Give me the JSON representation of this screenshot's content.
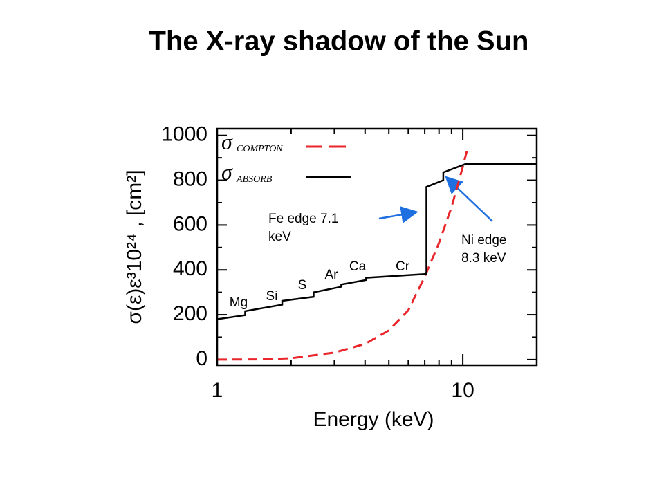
{
  "chart_data": {
    "type": "line",
    "title": "The X-ray shadow of the Sun",
    "xlabel": "Energy (keV)",
    "ylabel": "σ(ε)ε³10²⁴ , [cm²]",
    "xscale": "log",
    "xlim": [
      1,
      20
    ],
    "ylim": [
      -25,
      1030
    ],
    "xticks": [
      1,
      10
    ],
    "xminorticks": [
      2,
      3,
      4,
      5,
      6,
      7,
      8,
      9,
      20
    ],
    "yticks": [
      0,
      200,
      400,
      600,
      800,
      1000
    ],
    "yminorticks": [
      100,
      300,
      500,
      700,
      900
    ],
    "series": [
      {
        "symbol": "σ",
        "name": "COMPTON",
        "color": "#e8262b",
        "dash": true,
        "x": [
          1,
          1.5,
          2,
          3,
          4,
          5,
          6,
          7,
          8,
          9,
          10,
          10.5
        ],
        "values": [
          0,
          1,
          6,
          31,
          70,
          130,
          220,
          370,
          520,
          680,
          860,
          950
        ]
      },
      {
        "symbol": "σ",
        "name": "ABSORB",
        "color": "#000000",
        "dash": false,
        "x": [
          1,
          1.3,
          1.3,
          1.84,
          1.84,
          2.47,
          2.47,
          3.2,
          3.2,
          4.04,
          4.04,
          7.11,
          7.11,
          8.33,
          8.33,
          10.3,
          20
        ],
        "values": [
          180,
          198,
          216,
          245,
          262,
          280,
          300,
          325,
          335,
          355,
          365,
          382,
          770,
          800,
          835,
          873,
          873
        ]
      }
    ],
    "element_labels": [
      "Mg",
      "Si",
      "S",
      "Ar",
      "Ca",
      "Cr"
    ],
    "annotations": [
      {
        "text": [
          "Fe edge 7.1",
          "keV"
        ]
      },
      {
        "text": [
          "Ni edge",
          "8.3 keV"
        ]
      }
    ]
  }
}
